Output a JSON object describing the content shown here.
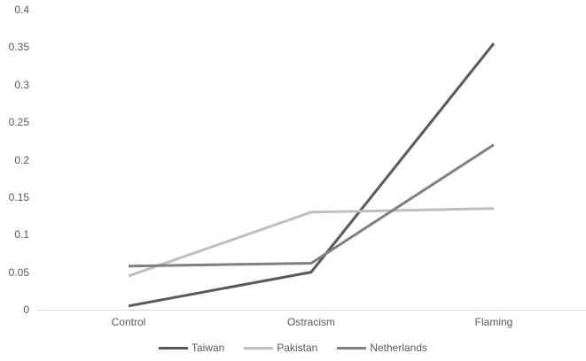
{
  "chart_data": {
    "type": "line",
    "title": "",
    "xlabel": "",
    "ylabel": "",
    "categories": [
      "Control",
      "Ostracism",
      "Flaming"
    ],
    "series": [
      {
        "name": "Taiwan",
        "color": "#595959",
        "values": [
          0.005,
          0.05,
          0.355
        ]
      },
      {
        "name": "Pakistan",
        "color": "#bfbfbf",
        "values": [
          0.045,
          0.13,
          0.135
        ]
      },
      {
        "name": "Netherlands",
        "color": "#808080",
        "values": [
          0.058,
          0.062,
          0.22
        ]
      }
    ],
    "ylim": [
      0,
      0.4
    ],
    "ytick_step": 0.05,
    "yticks": [
      "0",
      "0.05",
      "0.1",
      "0.15",
      "0.2",
      "0.25",
      "0.3",
      "0.35",
      "0.4"
    ],
    "grid": false,
    "legend_position": "bottom",
    "axis_line_color": "#d9d9d9",
    "text_color": "#595959"
  }
}
